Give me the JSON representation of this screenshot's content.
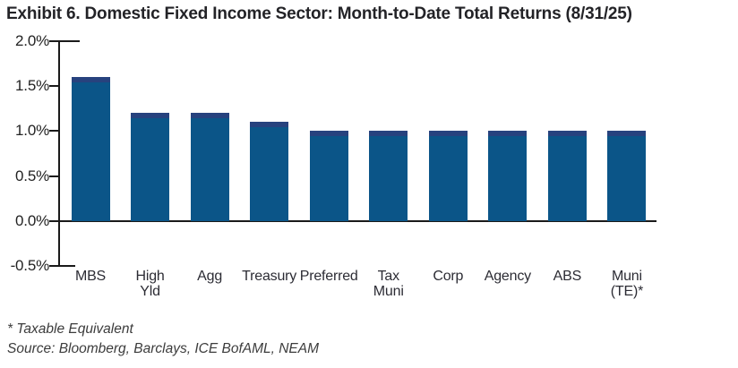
{
  "title": "Exhibit 6. Domestic Fixed Income Sector: Month-to-Date Total Returns (8/31/25)",
  "chart_data": {
    "type": "bar",
    "title": "Exhibit 6. Domestic Fixed Income Sector: Month-to-Date Total Returns (8/31/25)",
    "categories": [
      "MBS",
      "High Yld",
      "Agg",
      "Treasury",
      "Preferred",
      "Tax Muni",
      "Corp",
      "Agency",
      "ABS",
      "Muni (TE)*"
    ],
    "category_label_lines": [
      [
        "MBS"
      ],
      [
        "High",
        "Yld"
      ],
      [
        "Agg"
      ],
      [
        "Treasury"
      ],
      [
        "Preferred"
      ],
      [
        "Tax",
        "Muni"
      ],
      [
        "Corp"
      ],
      [
        "Agency"
      ],
      [
        "ABS"
      ],
      [
        "Muni",
        "(TE)*"
      ]
    ],
    "values": [
      1.6,
      1.2,
      1.2,
      1.1,
      1.0,
      1.0,
      1.0,
      1.0,
      1.0,
      1.0
    ],
    "unit": "%",
    "xlabel": "",
    "ylabel": "",
    "ylim": [
      -0.5,
      2.0
    ],
    "yticks": [
      2.0,
      1.5,
      1.0,
      0.5,
      0.0,
      -0.5
    ],
    "ytick_labels": [
      "2.0%",
      "1.5%",
      "1.0%",
      "0.5%",
      "0.0%",
      "-0.5%"
    ],
    "grid": false,
    "legend": "none",
    "bar_color": "#0B5588",
    "bar_top_edge_color": "#27427E",
    "axis_color": "#1A1A1A"
  },
  "footnote": "* Taxable Equivalent",
  "source": "Source: Bloomberg, Barclays, ICE BofAML, NEAM"
}
